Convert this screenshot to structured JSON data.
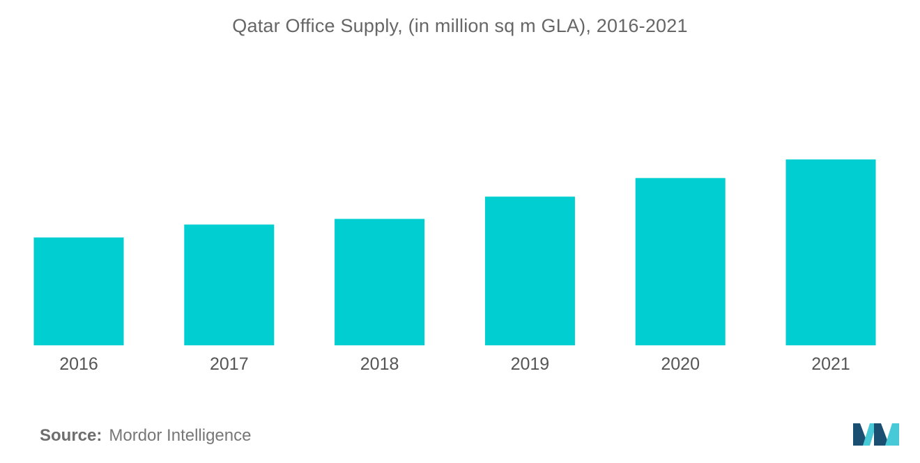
{
  "chart_data": {
    "type": "bar",
    "title": "Qatar Office Supply, (in million sq m GLA), 2016-2021",
    "categories": [
      "2016",
      "2017",
      "2018",
      "2019",
      "2020",
      "2021"
    ],
    "values": [
      5.8,
      6.5,
      6.8,
      8.0,
      9.0,
      10.0
    ],
    "ylim": [
      0,
      10
    ],
    "xlabel": "",
    "ylabel": "",
    "grid": false,
    "legend": "none",
    "bar_color": "#00CED1"
  },
  "footer": {
    "source_label": "Source:",
    "source_value": "Mordor Intelligence"
  },
  "colors": {
    "accent": "#00CED1",
    "logo_dark": "#1B4F72",
    "logo_light": "#48C9D8"
  },
  "logo": {
    "name": "mordor-intelligence-logo"
  }
}
